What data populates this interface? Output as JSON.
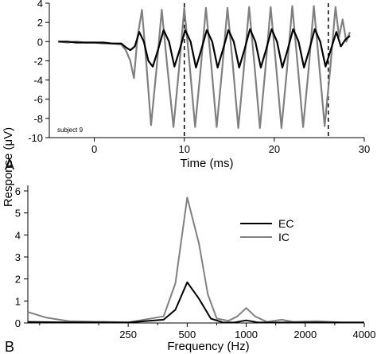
{
  "shared_ylabel": "Response (μV)",
  "chart_data": [
    {
      "type": "line",
      "panel_label": "A",
      "xlabel": "Time (ms)",
      "ylabel": "",
      "xlim": [
        -5,
        30
      ],
      "ylim": [
        -10,
        4
      ],
      "x_ticks": [
        0,
        10,
        20,
        30
      ],
      "y_ticks": [
        4,
        2,
        0,
        -2,
        -4,
        -6,
        -8,
        -10
      ],
      "annotation": "subject 9",
      "vertical_markers": [
        10,
        26
      ],
      "grid": false,
      "series": [
        {
          "key": "ic",
          "color": "#808080",
          "points": [
            [
              -4.0,
              0.0
            ],
            [
              -3.0,
              -0.1
            ],
            [
              -2.0,
              0.0
            ],
            [
              -1.0,
              -0.1
            ],
            [
              0.0,
              -0.1
            ],
            [
              1.0,
              -0.2
            ],
            [
              2.0,
              -0.2
            ],
            [
              3.0,
              -0.3
            ],
            [
              3.5,
              -0.9
            ],
            [
              4.0,
              -2.0
            ],
            [
              4.4,
              -3.8
            ],
            [
              4.8,
              0.5
            ],
            [
              5.3,
              3.3
            ],
            [
              5.8,
              -2.5
            ],
            [
              6.3,
              -8.7
            ],
            [
              6.9,
              -3.0
            ],
            [
              7.5,
              3.3
            ],
            [
              8.1,
              -2.5
            ],
            [
              8.8,
              -8.9
            ],
            [
              9.4,
              -3.0
            ],
            [
              10.0,
              3.5
            ],
            [
              10.6,
              -2.5
            ],
            [
              11.2,
              -8.9
            ],
            [
              11.8,
              -3.0
            ],
            [
              12.4,
              3.5
            ],
            [
              13.0,
              -2.5
            ],
            [
              13.6,
              -8.9
            ],
            [
              14.2,
              -3.0
            ],
            [
              14.8,
              3.5
            ],
            [
              15.4,
              -2.5
            ],
            [
              16.0,
              -9.0
            ],
            [
              16.6,
              -3.0
            ],
            [
              17.2,
              3.6
            ],
            [
              17.8,
              -2.5
            ],
            [
              18.4,
              -9.0
            ],
            [
              19.0,
              -3.0
            ],
            [
              19.6,
              3.6
            ],
            [
              20.2,
              -2.5
            ],
            [
              20.8,
              -9.0
            ],
            [
              21.4,
              -3.0
            ],
            [
              22.0,
              3.7
            ],
            [
              22.6,
              -2.5
            ],
            [
              23.2,
              -8.9
            ],
            [
              23.8,
              -3.0
            ],
            [
              24.4,
              3.7
            ],
            [
              25.0,
              -2.5
            ],
            [
              25.6,
              -8.8
            ],
            [
              26.2,
              -3.0
            ],
            [
              26.8,
              3.6
            ],
            [
              27.2,
              0.5
            ],
            [
              27.6,
              2.3
            ],
            [
              28.0,
              0.0
            ],
            [
              28.4,
              1.0
            ]
          ]
        },
        {
          "key": "ec",
          "color": "#000000",
          "points": [
            [
              -4.0,
              0.0
            ],
            [
              -3.0,
              0.0
            ],
            [
              -2.0,
              -0.1
            ],
            [
              -1.0,
              -0.1
            ],
            [
              0.0,
              -0.1
            ],
            [
              1.0,
              -0.1
            ],
            [
              2.0,
              -0.2
            ],
            [
              3.0,
              -0.2
            ],
            [
              3.5,
              -0.6
            ],
            [
              4.0,
              -0.9
            ],
            [
              4.5,
              -0.5
            ],
            [
              5.0,
              1.0
            ],
            [
              5.5,
              0.0
            ],
            [
              6.0,
              -2.0
            ],
            [
              6.5,
              -2.6
            ],
            [
              7.1,
              -0.8
            ],
            [
              7.7,
              1.2
            ],
            [
              8.3,
              0.0
            ],
            [
              8.9,
              -2.6
            ],
            [
              9.5,
              -0.8
            ],
            [
              10.1,
              1.2
            ],
            [
              10.7,
              0.0
            ],
            [
              11.3,
              -2.7
            ],
            [
              11.9,
              -0.8
            ],
            [
              12.5,
              1.2
            ],
            [
              13.1,
              0.0
            ],
            [
              13.7,
              -2.7
            ],
            [
              14.3,
              -0.8
            ],
            [
              14.9,
              1.2
            ],
            [
              15.5,
              0.0
            ],
            [
              16.1,
              -2.7
            ],
            [
              16.7,
              -0.8
            ],
            [
              17.3,
              1.3
            ],
            [
              17.9,
              0.0
            ],
            [
              18.5,
              -2.7
            ],
            [
              19.1,
              -0.8
            ],
            [
              19.7,
              1.3
            ],
            [
              20.3,
              0.0
            ],
            [
              20.9,
              -2.7
            ],
            [
              21.5,
              -0.8
            ],
            [
              22.1,
              1.3
            ],
            [
              22.7,
              0.0
            ],
            [
              23.3,
              -2.7
            ],
            [
              23.9,
              -0.8
            ],
            [
              24.5,
              1.3
            ],
            [
              25.1,
              0.0
            ],
            [
              25.7,
              -2.6
            ],
            [
              26.3,
              -0.8
            ],
            [
              26.9,
              1.0
            ],
            [
              27.4,
              -0.5
            ],
            [
              27.9,
              0.2
            ],
            [
              28.4,
              0.6
            ]
          ]
        }
      ]
    },
    {
      "type": "line",
      "panel_label": "B",
      "xlabel": "Frequency (Hz)",
      "ylabel": "",
      "ylim": [
        0,
        6
      ],
      "x_ticks": [
        "250",
        "500",
        "1000",
        "2000",
        "4000"
      ],
      "x_tick_octaves": [
        -1,
        0,
        1,
        2,
        3
      ],
      "xlim_octaves": [
        -2.7,
        3
      ],
      "y_ticks": [
        0,
        1,
        2,
        3,
        4,
        5,
        6
      ],
      "legend": {
        "placement": "center-right",
        "items": [
          "EC",
          "IC"
        ]
      },
      "grid": false,
      "series": [
        {
          "name": "EC",
          "color": "#000000",
          "points": [
            [
              -2.7,
              0.05
            ],
            [
              -2.0,
              0.03
            ],
            [
              -1.0,
              0.02
            ],
            [
              -0.4,
              0.15
            ],
            [
              -0.2,
              0.6
            ],
            [
              0.0,
              1.85
            ],
            [
              0.2,
              1.1
            ],
            [
              0.4,
              0.2
            ],
            [
              0.6,
              0.03
            ],
            [
              0.8,
              0.02
            ],
            [
              1.0,
              0.12
            ],
            [
              1.2,
              0.02
            ],
            [
              1.6,
              0.02
            ],
            [
              2.0,
              0.02
            ],
            [
              3.0,
              0.02
            ]
          ]
        },
        {
          "name": "IC",
          "color": "#808080",
          "points": [
            [
              -2.7,
              0.5
            ],
            [
              -2.4,
              0.25
            ],
            [
              -2.0,
              0.08
            ],
            [
              -1.0,
              0.03
            ],
            [
              -0.4,
              0.3
            ],
            [
              -0.2,
              1.8
            ],
            [
              0.0,
              5.7
            ],
            [
              0.2,
              3.6
            ],
            [
              0.35,
              1.3
            ],
            [
              0.5,
              0.2
            ],
            [
              0.7,
              0.1
            ],
            [
              0.85,
              0.3
            ],
            [
              1.0,
              0.68
            ],
            [
              1.15,
              0.3
            ],
            [
              1.35,
              0.05
            ],
            [
              1.6,
              0.15
            ],
            [
              1.8,
              0.05
            ],
            [
              2.2,
              0.08
            ],
            [
              2.6,
              0.03
            ],
            [
              3.0,
              0.02
            ]
          ]
        }
      ]
    }
  ]
}
